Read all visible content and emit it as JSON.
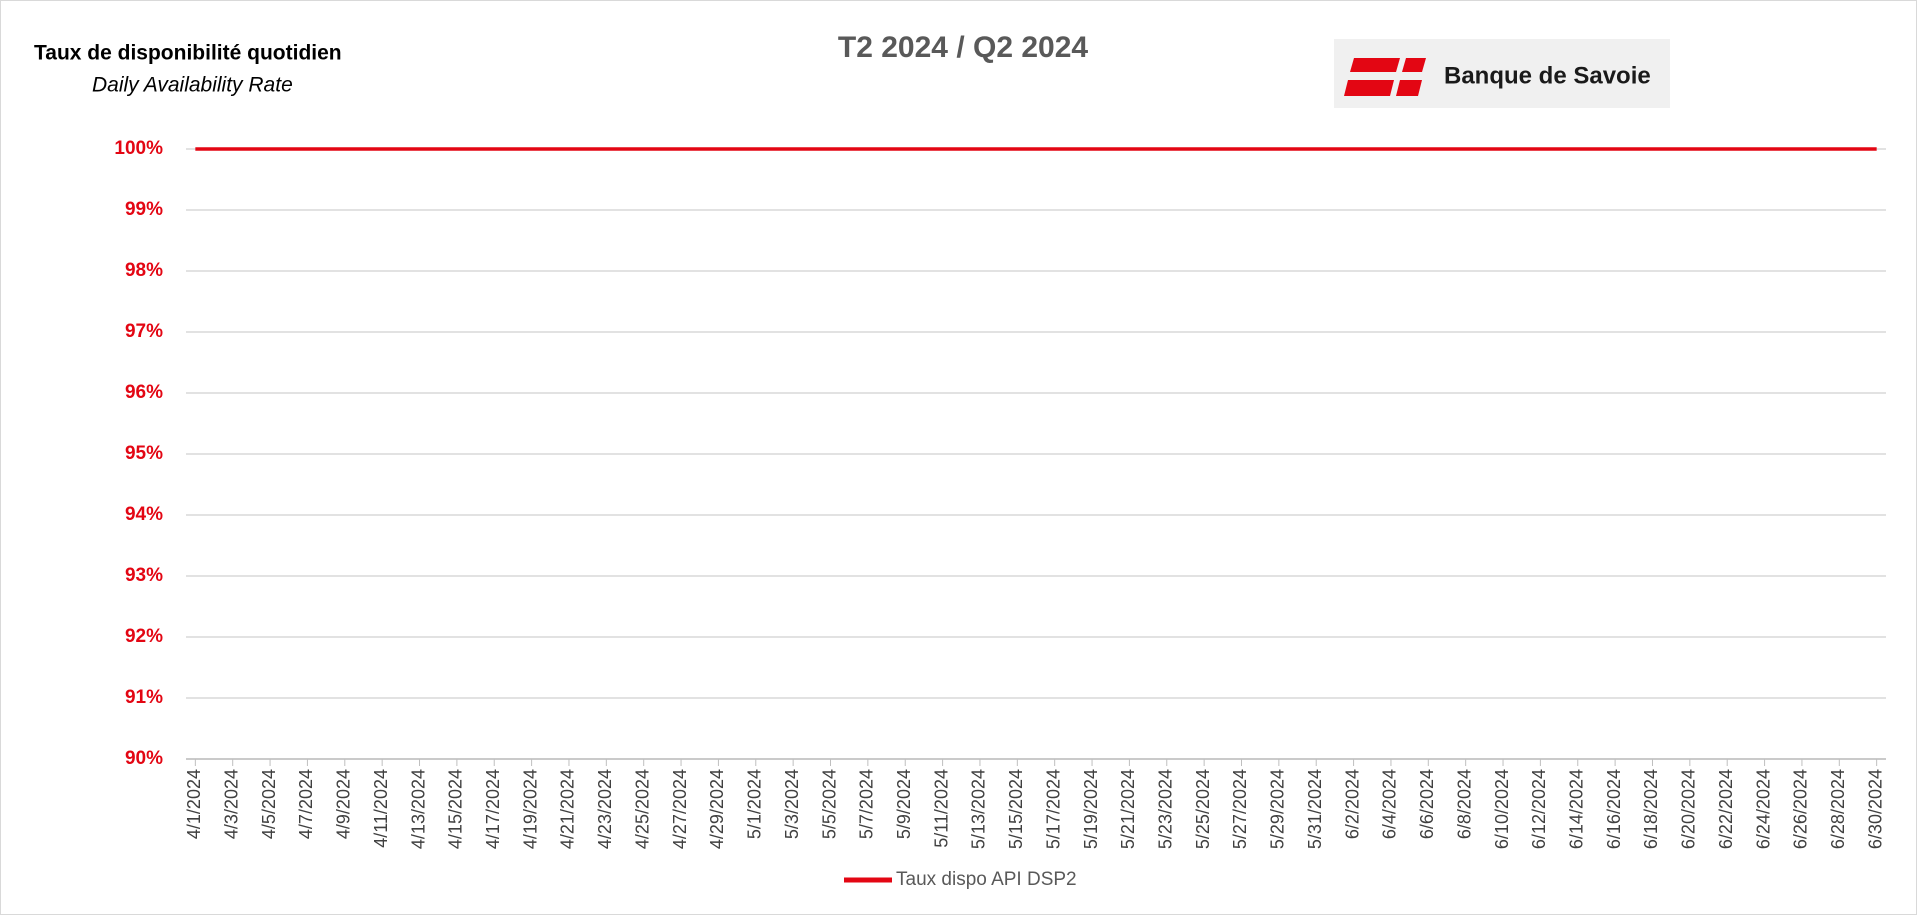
{
  "chart_data": {
    "type": "line",
    "title": "T2 2024 / Q2 2024",
    "header_title": "Taux de disponibilité quotidien",
    "header_subtitle": "Daily Availability Rate",
    "logo_text": "Banque de Savoie",
    "categories": [
      "4/1/2024",
      null,
      "4/3/2024",
      null,
      "4/5/2024",
      null,
      "4/7/2024",
      null,
      "4/9/2024",
      null,
      "4/11/2024",
      null,
      "4/13/2024",
      null,
      "4/15/2024",
      null,
      "4/17/2024",
      null,
      "4/19/2024",
      null,
      "4/21/2024",
      null,
      "4/23/2024",
      null,
      "4/25/2024",
      null,
      "4/27/2024",
      null,
      "4/29/2024",
      null,
      "5/1/2024",
      null,
      "5/3/2024",
      null,
      "5/5/2024",
      null,
      "5/7/2024",
      null,
      "5/9/2024",
      null,
      "5/11/2024",
      null,
      "5/13/2024",
      null,
      "5/15/2024",
      null,
      "5/17/2024",
      null,
      "5/19/2024",
      null,
      "5/21/2024",
      null,
      "5/23/2024",
      null,
      "5/25/2024",
      null,
      "5/27/2024",
      null,
      "5/29/2024",
      null,
      "5/31/2024",
      null,
      "6/2/2024",
      null,
      "6/4/2024",
      null,
      "6/6/2024",
      null,
      "6/8/2024",
      null,
      "6/10/2024",
      null,
      "6/12/2024",
      null,
      "6/14/2024",
      null,
      "6/16/2024",
      null,
      "6/18/2024",
      null,
      "6/20/2024",
      null,
      "6/22/2024",
      null,
      "6/24/2024",
      null,
      "6/26/2024",
      null,
      "6/28/2024",
      null,
      "6/30/2024"
    ],
    "series": [
      {
        "name": "Taux dispo API DSP2",
        "color": "#e30613",
        "values": [
          100,
          100,
          100,
          100,
          100,
          100,
          100,
          100,
          100,
          100,
          100,
          100,
          100,
          100,
          100,
          100,
          100,
          100,
          100,
          100,
          100,
          100,
          100,
          100,
          100,
          100,
          100,
          100,
          100,
          100,
          100,
          100,
          100,
          100,
          100,
          100,
          100,
          100,
          100,
          100,
          100,
          100,
          100,
          100,
          100,
          100,
          100,
          100,
          100,
          100,
          100,
          100,
          100,
          100,
          100,
          100,
          100,
          100,
          100,
          100,
          100,
          100,
          100,
          100,
          100,
          100,
          100,
          100,
          100,
          100,
          100,
          100,
          100,
          100,
          100,
          100,
          100,
          100,
          100,
          100,
          100,
          100,
          100,
          100,
          100,
          100,
          100,
          100,
          100,
          100,
          100
        ]
      }
    ],
    "ylim": [
      90,
      100
    ],
    "yticks": [
      {
        "value": 90,
        "label": "90%"
      },
      {
        "value": 91,
        "label": "91%"
      },
      {
        "value": 92,
        "label": "92%"
      },
      {
        "value": 93,
        "label": "93%"
      },
      {
        "value": 94,
        "label": "94%"
      },
      {
        "value": 95,
        "label": "95%"
      },
      {
        "value": 96,
        "label": "96%"
      },
      {
        "value": 97,
        "label": "97%"
      },
      {
        "value": 98,
        "label": "98%"
      },
      {
        "value": 99,
        "label": "99%"
      },
      {
        "value": 100,
        "label": "100%"
      }
    ],
    "grid": true,
    "legend": "bottom"
  }
}
